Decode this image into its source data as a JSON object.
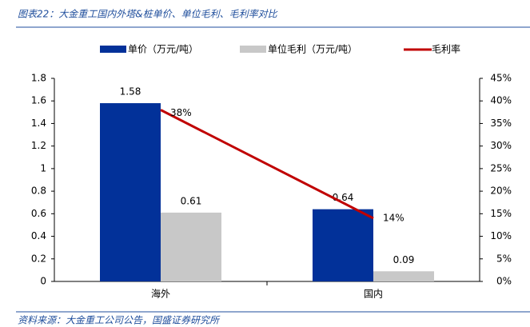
{
  "chart_data": {
    "type": "bar",
    "title": "图表22：大金重工国内外塔&桩单价、单位毛利、毛利率对比",
    "source": "资料来源：大金重工公司公告，国盛证券研究所",
    "categories": [
      "海外",
      "国内"
    ],
    "series": [
      {
        "name": "单价（万元/吨）",
        "color": "#023199",
        "type": "bar",
        "values": [
          1.58,
          0.64
        ]
      },
      {
        "name": "单位毛利（万元/吨）",
        "color": "#c8c8c8",
        "type": "bar",
        "values": [
          0.61,
          0.09
        ]
      },
      {
        "name": "毛利率",
        "color": "#c00000",
        "type": "line",
        "axis": "y2",
        "values": [
          38,
          14
        ],
        "value_labels": [
          "38%",
          "14%"
        ]
      }
    ],
    "ylim": [
      0,
      1.8
    ],
    "yticks": [
      0,
      0.2,
      0.4,
      0.6,
      0.8,
      1,
      1.2,
      1.4,
      1.6,
      1.8
    ],
    "y2lim": [
      0,
      45
    ],
    "y2ticks": [
      {
        "value": 0,
        "label": "0%"
      },
      {
        "value": 5,
        "label": "5%"
      },
      {
        "value": 10,
        "label": "10%"
      },
      {
        "value": 15,
        "label": "15%"
      },
      {
        "value": 20,
        "label": "20%"
      },
      {
        "value": 25,
        "label": "25%"
      },
      {
        "value": 30,
        "label": "30%"
      },
      {
        "value": 35,
        "label": "35%"
      },
      {
        "value": 40,
        "label": "40%"
      },
      {
        "value": 45,
        "label": "45%"
      }
    ],
    "legend": "top",
    "grid": false
  }
}
